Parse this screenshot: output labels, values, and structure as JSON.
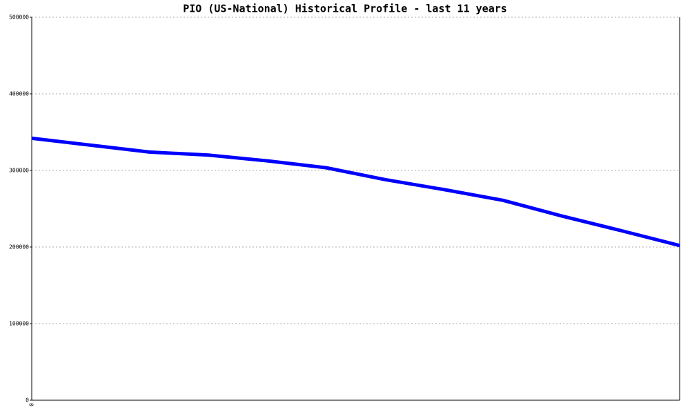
{
  "chart_data": {
    "type": "line",
    "title": "PIO (US-National) Historical Profile - last 11 years",
    "categories": [
      "0",
      null,
      null,
      null,
      null,
      null,
      null,
      null,
      null,
      null,
      null,
      null
    ],
    "series": [
      {
        "color": "#0000ff",
        "values": [
          342000,
          333000,
          324000,
          320000,
          312500,
          303500,
          288000,
          275000,
          261000,
          240500,
          221500,
          202000
        ]
      }
    ],
    "ylim": [
      0,
      500000
    ],
    "yticks": [
      0,
      100000,
      200000,
      300000,
      400000,
      500000
    ],
    "grid": true
  }
}
